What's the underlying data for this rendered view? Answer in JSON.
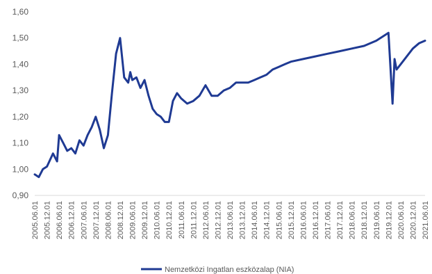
{
  "chart_data": {
    "type": "line",
    "title": "",
    "xlabel": "",
    "ylabel": "",
    "ylim": [
      0.9,
      1.6
    ],
    "yticks": [
      "0,90",
      "1,00",
      "1,10",
      "1,20",
      "1,30",
      "1,40",
      "1,50",
      "1,60"
    ],
    "xticks": [
      "2005.06.01",
      "2005.12.01",
      "2006.06.01",
      "2006.12.01",
      "2007.06.01",
      "2007.12.01",
      "2008.06.01",
      "2008.12.01",
      "2009.06.01",
      "2009.12.01",
      "2010.06.01",
      "2010.12.01",
      "2011.06.01",
      "2011.12.01",
      "2012.06.01",
      "2012.12.01",
      "2013.06.01",
      "2013.12.01",
      "2014.06.01",
      "2014.12.01",
      "2015.06.01",
      "2015.12.01",
      "2016.06.01",
      "2016.12.01",
      "2017.06.01",
      "2017.12.01",
      "2018.06.01",
      "2018.12.01",
      "2019.06.01",
      "2019.12.01",
      "2020.06.01",
      "2020.12.01",
      "2021.06.01"
    ],
    "grid": false,
    "legend_position": "bottom",
    "line_color": "#1f3a93",
    "series": [
      {
        "name": "Nemzetközi Ingatlan eszközalap (NIA)",
        "x": [
          "2005.06.01",
          "2005.08.01",
          "2005.10.01",
          "2005.12.01",
          "2006.03.01",
          "2006.05.01",
          "2006.06.01",
          "2006.08.01",
          "2006.10.01",
          "2006.12.01",
          "2007.02.01",
          "2007.04.01",
          "2007.06.01",
          "2007.08.01",
          "2007.10.01",
          "2007.12.01",
          "2008.02.01",
          "2008.04.01",
          "2008.06.01",
          "2008.08.01",
          "2008.10.01",
          "2008.12.01",
          "2009.02.01",
          "2009.04.01",
          "2009.05.01",
          "2009.06.01",
          "2009.08.01",
          "2009.10.01",
          "2009.12.01",
          "2010.02.01",
          "2010.04.01",
          "2010.06.01",
          "2010.08.01",
          "2010.10.01",
          "2010.12.01",
          "2011.02.01",
          "2011.04.01",
          "2011.06.01",
          "2011.09.01",
          "2011.12.01",
          "2012.03.01",
          "2012.06.01",
          "2012.09.01",
          "2012.12.01",
          "2013.03.01",
          "2013.06.01",
          "2013.09.01",
          "2013.12.01",
          "2014.03.01",
          "2014.06.01",
          "2014.09.01",
          "2014.12.01",
          "2015.03.01",
          "2015.06.01",
          "2015.09.01",
          "2015.12.01",
          "2016.06.01",
          "2016.12.01",
          "2017.06.01",
          "2017.12.01",
          "2018.06.01",
          "2018.12.01",
          "2019.06.01",
          "2019.12.01",
          "2020.02.01",
          "2020.03.01",
          "2020.04.01",
          "2020.06.01",
          "2020.09.01",
          "2020.12.01",
          "2021.03.01",
          "2021.06.01"
        ],
        "values": [
          0.98,
          0.97,
          1.0,
          1.01,
          1.06,
          1.03,
          1.13,
          1.1,
          1.07,
          1.08,
          1.06,
          1.11,
          1.09,
          1.13,
          1.16,
          1.2,
          1.15,
          1.08,
          1.13,
          1.29,
          1.44,
          1.5,
          1.35,
          1.33,
          1.37,
          1.34,
          1.35,
          1.31,
          1.34,
          1.28,
          1.23,
          1.21,
          1.2,
          1.18,
          1.18,
          1.26,
          1.29,
          1.27,
          1.25,
          1.26,
          1.28,
          1.32,
          1.28,
          1.28,
          1.3,
          1.31,
          1.33,
          1.33,
          1.33,
          1.34,
          1.35,
          1.36,
          1.38,
          1.39,
          1.4,
          1.41,
          1.42,
          1.43,
          1.44,
          1.45,
          1.46,
          1.47,
          1.49,
          1.52,
          1.25,
          1.42,
          1.38,
          1.4,
          1.43,
          1.46,
          1.48,
          1.49
        ]
      }
    ]
  }
}
